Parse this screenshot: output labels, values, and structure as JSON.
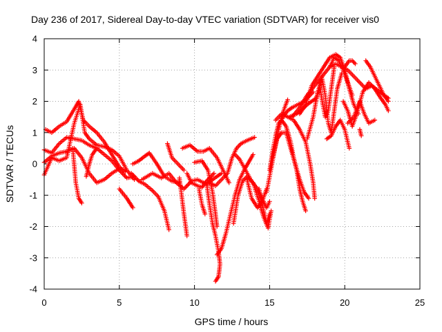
{
  "chart_data": {
    "type": "scatter",
    "title": "Day 236 of 2017, Sidereal Day-to-day VTEC variation (SDTVAR) for receiver vis0",
    "xlabel": "GPS time / hours",
    "ylabel": "SDTVAR / TECUs",
    "xlim": [
      0,
      25
    ],
    "ylim": [
      -4,
      4
    ],
    "xticks": [
      0,
      5,
      10,
      15,
      20,
      25
    ],
    "yticks": [
      -4,
      -3,
      -2,
      -1,
      0,
      1,
      2,
      3,
      4
    ],
    "xtick_labels": [
      "0",
      "5",
      "10",
      "15",
      "20",
      "25"
    ],
    "ytick_labels": [
      "-4",
      "-3",
      "-2",
      "-1",
      "0",
      "1",
      "2",
      "3",
      "4"
    ],
    "grid": true,
    "marker": "+",
    "series_color": "#ff0000",
    "tracks": [
      [
        [
          0.0,
          0.05
        ],
        [
          0.5,
          0.25
        ],
        [
          1.0,
          0.35
        ],
        [
          1.5,
          0.4
        ],
        [
          2.0,
          0.5
        ],
        [
          2.5,
          0.2
        ],
        [
          3.0,
          -0.3
        ],
        [
          3.5,
          -0.6
        ],
        [
          4.0,
          -0.5
        ],
        [
          4.5,
          -0.3
        ],
        [
          5.0,
          -0.15
        ]
      ],
      [
        [
          0.0,
          0.45
        ],
        [
          0.5,
          0.35
        ],
        [
          1.0,
          0.65
        ],
        [
          1.5,
          0.85
        ],
        [
          2.0,
          0.8
        ],
        [
          2.5,
          0.75
        ],
        [
          3.0,
          0.6
        ],
        [
          3.5,
          0.5
        ],
        [
          4.0,
          0.3
        ],
        [
          4.5,
          0.1
        ],
        [
          5.0,
          -0.2
        ],
        [
          5.5,
          -0.45
        ],
        [
          6.0,
          -0.4
        ]
      ],
      [
        [
          0.1,
          1.1
        ],
        [
          0.5,
          1.0
        ],
        [
          1.0,
          1.2
        ],
        [
          1.5,
          1.35
        ],
        [
          2.0,
          1.75
        ],
        [
          2.3,
          2.0
        ],
        [
          2.6,
          1.4
        ],
        [
          3.0,
          1.2
        ],
        [
          3.5,
          1.0
        ],
        [
          4.0,
          0.7
        ],
        [
          4.5,
          0.3
        ],
        [
          5.0,
          -0.1
        ],
        [
          5.4,
          -0.25
        ]
      ],
      [
        [
          0.0,
          -0.35
        ],
        [
          0.5,
          0.2
        ],
        [
          1.0,
          0.1
        ],
        [
          1.5,
          0.2
        ],
        [
          2.0,
          1.3
        ],
        [
          2.4,
          1.9
        ],
        [
          2.7,
          1.0
        ],
        [
          3.0,
          0.8
        ],
        [
          3.5,
          0.6
        ],
        [
          4.0,
          0.55
        ],
        [
          4.5,
          0.45
        ],
        [
          5.0,
          0.25
        ],
        [
          5.5,
          -0.2
        ],
        [
          6.0,
          -0.5
        ]
      ],
      [
        [
          1.9,
          0.5
        ],
        [
          2.1,
          -0.6
        ],
        [
          2.3,
          -1.1
        ],
        [
          2.5,
          -1.25
        ]
      ],
      [
        [
          2.8,
          -0.4
        ],
        [
          3.0,
          0.0
        ],
        [
          3.2,
          0.3
        ],
        [
          3.5,
          0.5
        ]
      ],
      [
        [
          5.0,
          -0.8
        ],
        [
          5.5,
          -1.1
        ],
        [
          5.9,
          -1.4
        ]
      ],
      [
        [
          5.8,
          -0.3
        ],
        [
          6.3,
          -0.55
        ],
        [
          6.7,
          -0.65
        ],
        [
          7.2,
          -0.85
        ],
        [
          7.6,
          -1.05
        ],
        [
          8.0,
          -1.5
        ],
        [
          8.3,
          -2.1
        ]
      ],
      [
        [
          5.9,
          0.0
        ],
        [
          6.3,
          0.1
        ],
        [
          6.7,
          0.25
        ],
        [
          7.0,
          0.35
        ],
        [
          7.5,
          0.0
        ],
        [
          8.0,
          -0.4
        ],
        [
          8.5,
          -0.55
        ],
        [
          9.0,
          -0.6
        ]
      ],
      [
        [
          6.5,
          -0.5
        ],
        [
          7.2,
          -0.3
        ],
        [
          7.8,
          -0.45
        ],
        [
          8.3,
          -0.3
        ],
        [
          8.8,
          -0.6
        ],
        [
          9.3,
          -0.8
        ],
        [
          9.8,
          -0.55
        ],
        [
          10.2,
          -0.5
        ],
        [
          10.8,
          -0.65
        ],
        [
          11.2,
          -0.5
        ],
        [
          11.8,
          -0.3
        ]
      ],
      [
        [
          8.2,
          0.65
        ],
        [
          8.5,
          0.2
        ],
        [
          8.9,
          0.0
        ],
        [
          9.3,
          -0.2
        ]
      ],
      [
        [
          9.0,
          -0.45
        ],
        [
          9.3,
          -1.6
        ],
        [
          9.5,
          -2.3
        ]
      ],
      [
        [
          9.2,
          0.5
        ],
        [
          9.7,
          0.6
        ],
        [
          10.2,
          0.4
        ],
        [
          10.6,
          0.4
        ],
        [
          11.0,
          0.5
        ],
        [
          11.5,
          0.2
        ],
        [
          11.9,
          -0.2
        ],
        [
          12.3,
          -0.6
        ]
      ],
      [
        [
          9.5,
          -0.3
        ],
        [
          9.8,
          -0.6
        ],
        [
          10.2,
          -0.7
        ],
        [
          10.5,
          -0.75
        ],
        [
          10.8,
          -0.55
        ],
        [
          11.3,
          -0.3
        ]
      ],
      [
        [
          10.0,
          0.05
        ],
        [
          10.5,
          0.1
        ],
        [
          10.9,
          -0.2
        ],
        [
          11.2,
          -0.9
        ],
        [
          11.4,
          -1.6
        ],
        [
          11.5,
          -2.0
        ]
      ],
      [
        [
          10.3,
          -0.8
        ],
        [
          10.5,
          -1.3
        ],
        [
          10.7,
          -1.6
        ]
      ],
      [
        [
          10.8,
          -0.6
        ],
        [
          11.0,
          -1.3
        ],
        [
          11.2,
          -1.9
        ],
        [
          11.4,
          -2.3
        ],
        [
          11.6,
          -2.8
        ],
        [
          11.7,
          -3.2
        ],
        [
          11.6,
          -3.6
        ],
        [
          11.4,
          -3.75
        ]
      ],
      [
        [
          11.5,
          -2.9
        ],
        [
          11.8,
          -2.7
        ],
        [
          12.1,
          -2.2
        ],
        [
          12.4,
          -1.6
        ],
        [
          12.7,
          -1.0
        ],
        [
          13.0,
          -0.5
        ],
        [
          13.3,
          -0.2
        ],
        [
          13.6,
          0.05
        ],
        [
          13.9,
          0.3
        ]
      ],
      [
        [
          11.0,
          -0.6
        ],
        [
          11.4,
          -0.7
        ],
        [
          11.8,
          -0.5
        ],
        [
          12.2,
          -0.3
        ],
        [
          12.5,
          0.2
        ],
        [
          12.8,
          0.5
        ],
        [
          13.1,
          0.65
        ],
        [
          13.5,
          0.75
        ],
        [
          14.0,
          0.85
        ]
      ],
      [
        [
          12.6,
          -1.9
        ],
        [
          12.9,
          -1.0
        ],
        [
          13.2,
          -0.55
        ],
        [
          13.5,
          -0.4
        ],
        [
          13.9,
          -0.6
        ],
        [
          14.3,
          -1.2
        ],
        [
          14.6,
          -1.7
        ],
        [
          14.9,
          -2.05
        ],
        [
          15.1,
          -1.5
        ]
      ],
      [
        [
          12.7,
          0.3
        ],
        [
          13.0,
          0.15
        ],
        [
          13.4,
          -0.2
        ],
        [
          13.8,
          -0.55
        ],
        [
          14.2,
          -0.8
        ],
        [
          14.5,
          -1.1
        ],
        [
          14.8,
          -1.4
        ],
        [
          15.0,
          -1.2
        ]
      ],
      [
        [
          13.5,
          -0.5
        ],
        [
          13.8,
          -1.1
        ],
        [
          14.2,
          -1.4
        ],
        [
          14.5,
          -1.2
        ],
        [
          14.8,
          -0.8
        ]
      ],
      [
        [
          14.3,
          -0.8
        ],
        [
          14.6,
          -1.5
        ],
        [
          14.8,
          -1.9
        ],
        [
          15.0,
          -1.6
        ]
      ],
      [
        [
          14.8,
          -0.9
        ],
        [
          15.0,
          -0.4
        ],
        [
          15.2,
          0.1
        ],
        [
          15.4,
          0.6
        ],
        [
          15.6,
          1.1
        ],
        [
          15.8,
          1.5
        ],
        [
          16.0,
          1.8
        ],
        [
          16.2,
          2.05
        ]
      ],
      [
        [
          15.0,
          -0.2
        ],
        [
          15.2,
          0.4
        ],
        [
          15.4,
          0.9
        ],
        [
          15.6,
          1.3
        ],
        [
          15.8,
          1.4
        ],
        [
          16.1,
          1.2
        ],
        [
          16.4,
          0.7
        ],
        [
          16.6,
          0.2
        ],
        [
          16.8,
          -0.2
        ],
        [
          17.0,
          -0.8
        ],
        [
          17.2,
          -1.2
        ],
        [
          17.4,
          -1.5
        ]
      ],
      [
        [
          15.2,
          0.2
        ],
        [
          15.5,
          0.8
        ],
        [
          15.8,
          1.0
        ],
        [
          16.1,
          1.0
        ],
        [
          16.4,
          0.5
        ],
        [
          16.7,
          0.0
        ],
        [
          17.0,
          -0.5
        ],
        [
          17.3,
          -0.9
        ],
        [
          17.6,
          -1.1
        ]
      ],
      [
        [
          15.4,
          1.4
        ],
        [
          15.8,
          1.6
        ],
        [
          16.2,
          1.5
        ],
        [
          16.6,
          1.4
        ],
        [
          17.0,
          1.1
        ],
        [
          17.4,
          0.7
        ],
        [
          17.7,
          0.0
        ],
        [
          17.9,
          -0.6
        ],
        [
          18.0,
          -1.1
        ]
      ],
      [
        [
          15.6,
          1.2
        ],
        [
          15.9,
          1.5
        ],
        [
          16.2,
          1.7
        ],
        [
          16.5,
          1.8
        ],
        [
          16.9,
          1.9
        ],
        [
          17.3,
          2.0
        ],
        [
          17.6,
          2.15
        ],
        [
          17.9,
          2.3
        ]
      ],
      [
        [
          16.3,
          1.5
        ],
        [
          16.8,
          1.6
        ],
        [
          17.2,
          1.75
        ],
        [
          17.5,
          1.9
        ],
        [
          17.8,
          2.0
        ],
        [
          18.1,
          2.1
        ],
        [
          18.3,
          2.4
        ],
        [
          18.5,
          2.8
        ]
      ],
      [
        [
          16.5,
          1.5
        ],
        [
          17.0,
          1.8
        ],
        [
          17.5,
          2.2
        ],
        [
          18.0,
          2.5
        ],
        [
          18.5,
          2.8
        ],
        [
          19.0,
          3.1
        ],
        [
          19.3,
          3.4
        ],
        [
          19.6,
          3.3
        ],
        [
          19.9,
          3.0
        ],
        [
          20.2,
          2.6
        ],
        [
          20.5,
          2.2
        ]
      ],
      [
        [
          17.0,
          1.6
        ],
        [
          17.4,
          1.9
        ],
        [
          17.8,
          2.5
        ],
        [
          18.2,
          2.8
        ],
        [
          18.6,
          3.1
        ],
        [
          19.0,
          3.4
        ],
        [
          19.4,
          3.5
        ],
        [
          19.7,
          3.4
        ],
        [
          20.0,
          3.0
        ],
        [
          20.3,
          2.4
        ],
        [
          20.6,
          1.9
        ],
        [
          20.9,
          1.6
        ]
      ],
      [
        [
          17.5,
          0.8
        ],
        [
          17.9,
          1.5
        ],
        [
          18.2,
          2.3
        ],
        [
          18.5,
          2.7
        ],
        [
          18.7,
          2.2
        ],
        [
          18.9,
          1.3
        ],
        [
          19.1,
          1.0
        ],
        [
          19.3,
          1.7
        ],
        [
          19.5,
          2.4
        ],
        [
          19.8,
          2.9
        ]
      ],
      [
        [
          18.3,
          2.6
        ],
        [
          18.5,
          2.0
        ],
        [
          18.7,
          1.5
        ],
        [
          18.9,
          1.7
        ],
        [
          19.1,
          2.4
        ],
        [
          19.3,
          3.1
        ]
      ],
      [
        [
          18.8,
          0.8
        ],
        [
          19.1,
          0.9
        ],
        [
          19.4,
          1.2
        ],
        [
          19.7,
          1.4
        ],
        [
          20.0,
          1.1
        ],
        [
          20.3,
          0.5
        ]
      ],
      [
        [
          19.0,
          3.1
        ],
        [
          19.4,
          3.2
        ],
        [
          19.8,
          3.1
        ],
        [
          20.2,
          3.0
        ],
        [
          20.6,
          2.8
        ],
        [
          21.0,
          2.6
        ],
        [
          21.4,
          2.4
        ],
        [
          21.8,
          2.5
        ],
        [
          22.2,
          2.35
        ],
        [
          22.6,
          2.2
        ],
        [
          22.9,
          2.1
        ]
      ],
      [
        [
          19.9,
          2.0
        ],
        [
          20.2,
          1.7
        ],
        [
          20.5,
          1.2
        ],
        [
          20.8,
          1.6
        ],
        [
          21.2,
          2.3
        ],
        [
          21.6,
          2.6
        ],
        [
          22.0,
          2.4
        ],
        [
          22.4,
          2.1
        ],
        [
          22.7,
          1.9
        ],
        [
          22.9,
          1.7
        ]
      ],
      [
        [
          20.2,
          1.3
        ],
        [
          20.6,
          1.5
        ],
        [
          21.0,
          2.0
        ],
        [
          21.3,
          1.6
        ],
        [
          21.6,
          1.3
        ],
        [
          22.0,
          1.4
        ]
      ],
      [
        [
          20.0,
          3.1
        ],
        [
          20.3,
          3.3
        ],
        [
          20.5,
          3.3
        ],
        [
          20.7,
          3.2
        ]
      ],
      [
        [
          21.4,
          3.3
        ],
        [
          21.7,
          3.1
        ],
        [
          22.0,
          2.8
        ],
        [
          22.3,
          2.5
        ],
        [
          22.6,
          2.2
        ],
        [
          22.9,
          2.0
        ]
      ],
      [
        [
          21.0,
          1.1
        ],
        [
          21.1,
          0.9
        ]
      ]
    ]
  }
}
